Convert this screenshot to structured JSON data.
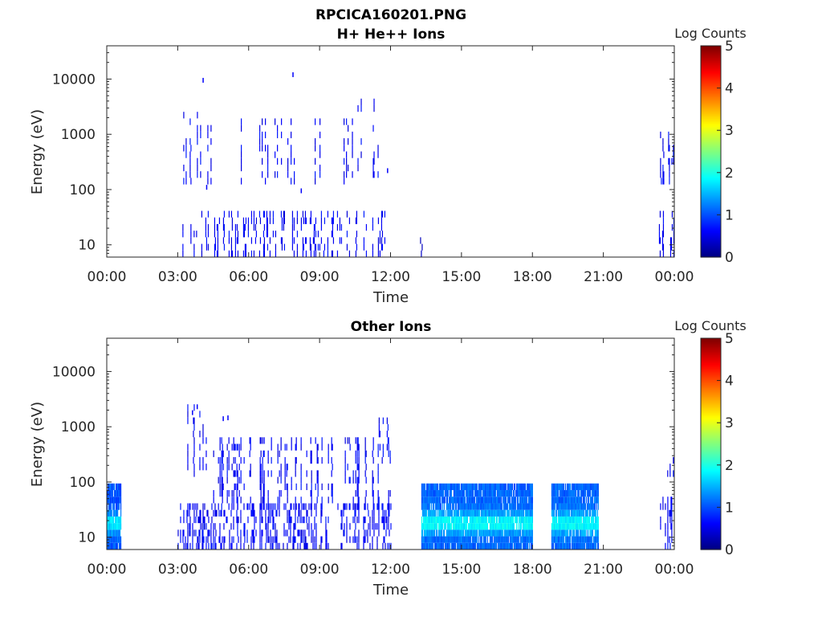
{
  "figure_title": "RPCICA160201.PNG",
  "chart_data": [
    {
      "type": "heatmap",
      "title": "H+ He++ Ions",
      "xlabel": "Time",
      "ylabel": "Energy (eV)",
      "x_range_hours": [
        0,
        24
      ],
      "ylim": [
        6,
        40000
      ],
      "y_scale": "log",
      "x_ticks": [
        "00:00",
        "03:00",
        "06:00",
        "09:00",
        "12:00",
        "15:00",
        "18:00",
        "21:00",
        "00:00"
      ],
      "y_ticks": [
        {
          "value": 10,
          "label": "10"
        },
        {
          "value": 100,
          "label": "100"
        },
        {
          "value": 1000,
          "label": "1000"
        },
        {
          "value": 10000,
          "label": "10000"
        }
      ],
      "colorbar": {
        "label": "Log Counts",
        "range": [
          0,
          5
        ],
        "ticks": [
          "0",
          "1",
          "2",
          "3",
          "4",
          "5"
        ]
      },
      "grid": false,
      "segments": [
        {
          "t0": 3.2,
          "t1": 3.8,
          "e0": 6,
          "e1": 25,
          "level": 0.6,
          "density": 0.25,
          "seed": 11
        },
        {
          "t0": 4.0,
          "t1": 12.0,
          "e0": 6,
          "e1": 35,
          "level": 0.6,
          "density": 0.3,
          "seed": 12
        },
        {
          "t0": 3.1,
          "t1": 4.4,
          "e0": 150,
          "e1": 2500,
          "level": 0.6,
          "density": 0.12,
          "seed": 13
        },
        {
          "t0": 5.5,
          "t1": 10.2,
          "e0": 150,
          "e1": 1600,
          "level": 0.6,
          "density": 0.18,
          "seed": 14
        },
        {
          "t0": 10.3,
          "t1": 11.8,
          "e0": 180,
          "e1": 3500,
          "level": 0.6,
          "density": 0.12,
          "seed": 15
        },
        {
          "t0": 13.25,
          "t1": 13.35,
          "e0": 6,
          "e1": 13,
          "level": 0.4,
          "density": 1.0,
          "seed": 16
        },
        {
          "t0": 23.35,
          "t1": 24.0,
          "e0": 6,
          "e1": 40,
          "level": 0.6,
          "density": 0.4,
          "seed": 17
        },
        {
          "t0": 23.4,
          "t1": 24.0,
          "e0": 150,
          "e1": 900,
          "level": 0.6,
          "density": 0.25,
          "seed": 18
        }
      ],
      "points": [
        {
          "t": 4.05,
          "e": 9500,
          "level": 0.6
        },
        {
          "t": 7.85,
          "e": 12000,
          "level": 0.6
        },
        {
          "t": 4.2,
          "e": 110,
          "level": 0.6
        },
        {
          "t": 8.2,
          "e": 95,
          "level": 0.6
        },
        {
          "t": 11.85,
          "e": 220,
          "level": 0.6
        }
      ]
    },
    {
      "type": "heatmap",
      "title": "Other Ions",
      "xlabel": "Time",
      "ylabel": "Energy (eV)",
      "x_range_hours": [
        0,
        24
      ],
      "ylim": [
        6,
        40000
      ],
      "y_scale": "log",
      "x_ticks": [
        "00:00",
        "03:00",
        "06:00",
        "09:00",
        "12:00",
        "15:00",
        "18:00",
        "21:00",
        "00:00"
      ],
      "y_ticks": [
        {
          "value": 10,
          "label": "10"
        },
        {
          "value": 100,
          "label": "100"
        },
        {
          "value": 1000,
          "label": "1000"
        },
        {
          "value": 10000,
          "label": "10000"
        }
      ],
      "colorbar": {
        "label": "Log Counts",
        "range": [
          0,
          5
        ],
        "ticks": [
          "0",
          "1",
          "2",
          "3",
          "4",
          "5"
        ]
      },
      "grid": false,
      "segments": [
        {
          "t0": 0.0,
          "t1": 0.6,
          "e0": 6,
          "e1": 80,
          "level": 1.2,
          "density": 1.0,
          "seed": 21,
          "core": true
        },
        {
          "t0": 3.0,
          "t1": 12.0,
          "e0": 6,
          "e1": 35,
          "level": 0.6,
          "density": 0.55,
          "seed": 22
        },
        {
          "t0": 3.0,
          "t1": 4.5,
          "e0": 150,
          "e1": 2300,
          "level": 0.6,
          "density": 0.12,
          "seed": 23
        },
        {
          "t0": 4.5,
          "t1": 12.0,
          "e0": 35,
          "e1": 600,
          "level": 0.6,
          "density": 0.3,
          "seed": 24
        },
        {
          "t0": 11.5,
          "t1": 11.9,
          "e0": 300,
          "e1": 1300,
          "level": 0.6,
          "density": 0.3,
          "seed": 25
        },
        {
          "t0": 13.3,
          "t1": 18.0,
          "e0": 6,
          "e1": 80,
          "level": 1.3,
          "density": 1.0,
          "seed": 26,
          "core": true
        },
        {
          "t0": 18.8,
          "t1": 20.8,
          "e0": 6,
          "e1": 80,
          "level": 1.3,
          "density": 1.0,
          "seed": 27,
          "core": true
        },
        {
          "t0": 23.4,
          "t1": 24.0,
          "e0": 6,
          "e1": 50,
          "level": 0.6,
          "density": 0.5,
          "seed": 28
        },
        {
          "t0": 23.6,
          "t1": 24.0,
          "e0": 130,
          "e1": 350,
          "level": 0.6,
          "density": 0.3,
          "seed": 29
        }
      ],
      "points": [
        {
          "t": 3.6,
          "e": 1800,
          "level": 0.6
        },
        {
          "t": 3.8,
          "e": 2300,
          "level": 0.6
        },
        {
          "t": 4.9,
          "e": 1400,
          "level": 0.6
        },
        {
          "t": 5.1,
          "e": 1450,
          "level": 0.6
        }
      ]
    }
  ]
}
